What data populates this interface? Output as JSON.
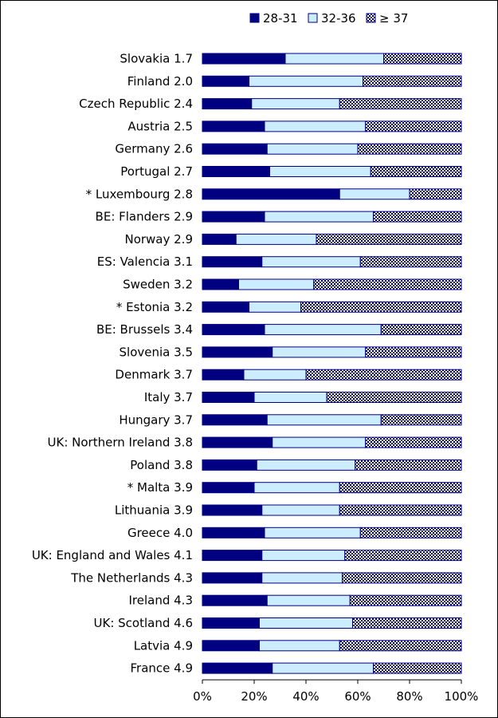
{
  "chart_data": {
    "type": "bar",
    "orientation": "horizontal",
    "stacked": "percent",
    "categories": [
      "Slovakia 1.7",
      "Finland 2.0",
      "Czech Republic 2.4",
      "Austria 2.5",
      "Germany 2.6",
      "Portugal 2.7",
      "* Luxembourg 2.8",
      "BE: Flanders 2.9",
      "Norway 2.9",
      "ES: Valencia 3.1",
      "Sweden 3.2",
      "* Estonia 3.2",
      "BE: Brussels 3.4",
      "Slovenia 3.5",
      "Denmark 3.7",
      "Italy 3.7",
      "Hungary 3.7",
      "UK: Northern Ireland 3.8",
      "Poland 3.8",
      "* Malta 3.9",
      "Lithuania 3.9",
      "Greece 4.0",
      "UK: England and Wales 4.1",
      "The Netherlands 4.3",
      "Ireland 4.3",
      "UK: Scotland 4.6",
      "Latvia 4.9",
      "France 4.9"
    ],
    "series": [
      {
        "name": "28-31",
        "color": "#000080",
        "pattern": "solid",
        "values": [
          32,
          18,
          19,
          24,
          25,
          26,
          53,
          24,
          13,
          23,
          14,
          18,
          24,
          27,
          16,
          20,
          25,
          27,
          21,
          20,
          23,
          24,
          23,
          23,
          25,
          22,
          22,
          27
        ]
      },
      {
        "name": "32-36",
        "color": "#CCECFF",
        "pattern": "solid",
        "values": [
          38,
          44,
          34,
          39,
          35,
          39,
          27,
          42,
          31,
          38,
          29,
          20,
          45,
          36,
          24,
          28,
          44,
          36,
          38,
          33,
          30,
          37,
          32,
          31,
          32,
          36,
          31,
          39
        ]
      },
      {
        "name": "≥ 37",
        "color": "#000080",
        "pattern": "checker",
        "values": [
          30,
          38,
          47,
          37,
          40,
          35,
          20,
          34,
          56,
          39,
          57,
          62,
          31,
          37,
          60,
          52,
          31,
          37,
          41,
          47,
          47,
          39,
          45,
          46,
          43,
          42,
          47,
          34
        ]
      }
    ],
    "x_ticks": [
      "0%",
      "20%",
      "40%",
      "60%",
      "80%",
      "100%"
    ],
    "xlim": [
      0,
      100
    ],
    "legend_position": "top",
    "grid": false,
    "title": "",
    "xlabel": "",
    "ylabel": ""
  }
}
